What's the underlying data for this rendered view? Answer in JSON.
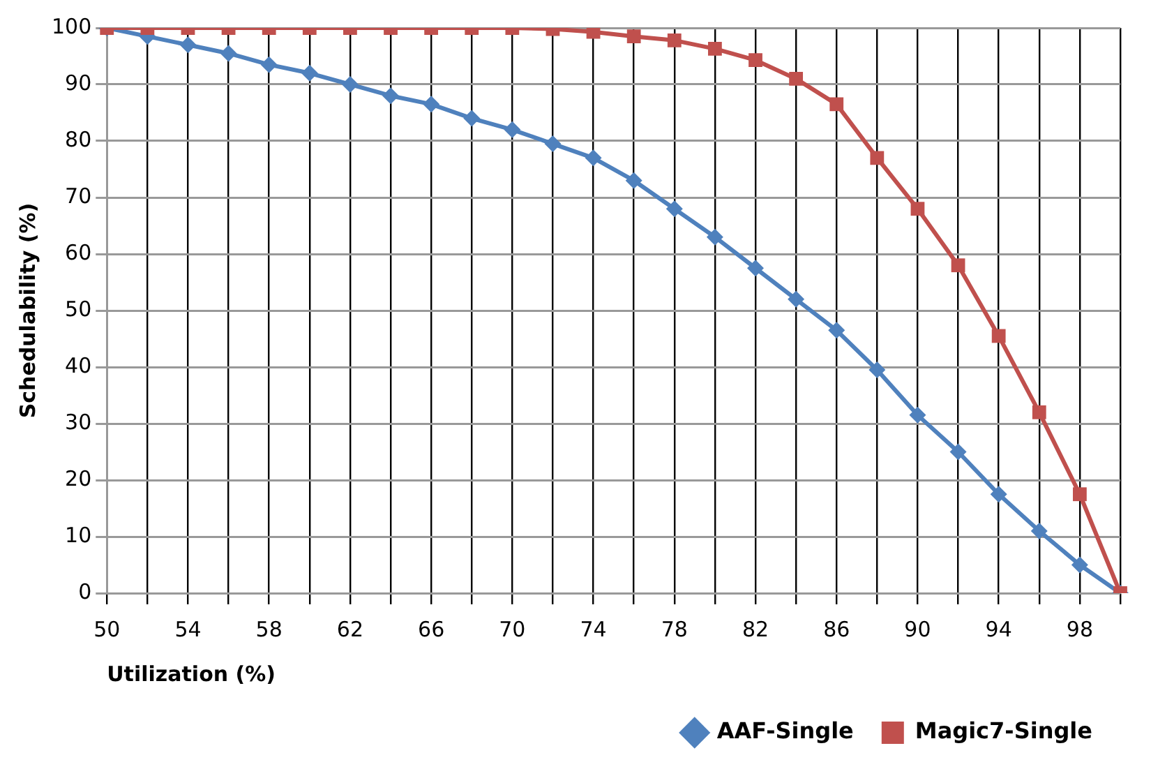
{
  "chart_data": {
    "type": "line",
    "xlabel": "Utilization (%)",
    "ylabel": "Schedulability (%)",
    "categories": [
      "50",
      null,
      "54",
      null,
      "58",
      null,
      "62",
      null,
      "66",
      null,
      "70",
      null,
      "74",
      null,
      "78",
      null,
      "82",
      null,
      "86",
      null,
      "90",
      null,
      "94",
      null,
      "98",
      null
    ],
    "series": [
      {
        "name": "AAF-Single",
        "color": "#4f81bd",
        "marker": "diamond",
        "values": [
          100,
          98.5,
          97,
          95.5,
          93.5,
          92,
          90,
          88,
          86.5,
          84,
          82,
          79.5,
          77,
          73,
          68,
          63,
          57.5,
          52,
          46.5,
          39.5,
          31.5,
          25,
          17.5,
          11,
          5,
          0
        ]
      },
      {
        "name": "Magic7-Single",
        "color": "#c0504d",
        "marker": "square",
        "values": [
          100,
          100,
          100,
          100,
          100,
          100,
          100,
          100,
          100,
          100,
          100,
          99.8,
          99.3,
          98.5,
          97.8,
          96.3,
          94.3,
          91,
          86.5,
          77,
          68,
          58,
          45.5,
          32,
          17.5,
          0
        ]
      }
    ],
    "ylim": [
      0,
      100
    ],
    "yticks": [
      0,
      10,
      20,
      30,
      40,
      50,
      60,
      70,
      80,
      90,
      100
    ],
    "grid": true,
    "legend": "bottom right",
    "line_style": "solid"
  }
}
